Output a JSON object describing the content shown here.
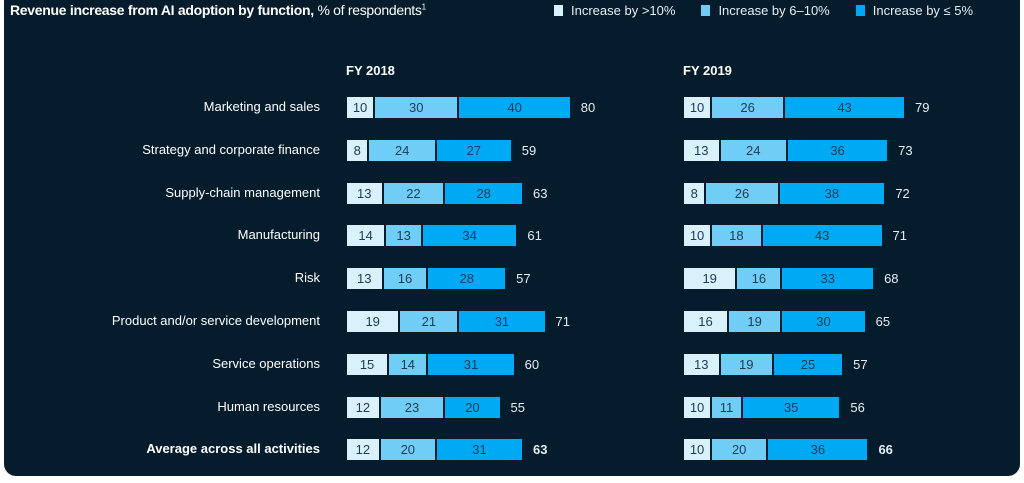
{
  "chart_data": {
    "type": "bar",
    "stacked": true,
    "orientation": "horizontal",
    "title": "Revenue increase from AI adoption by function,",
    "title_suffix": "% of respondents",
    "footnote_marker": "1",
    "legend": [
      "Increase by >10%",
      "Increase by 6–10%",
      "Increase by ≤ 5%"
    ],
    "legend_placement": "top-right",
    "colors": [
      "#d8f1fb",
      "#6fcdf6",
      "#00a9f4"
    ],
    "categories": [
      "Marketing and sales",
      "Strategy and corporate finance",
      "Supply-chain management",
      "Manufacturing",
      "Risk",
      "Product and/or service development",
      "Service operations",
      "Human resources",
      "Average across all activities"
    ],
    "panels": [
      {
        "title": "FY 2018",
        "series": [
          {
            "name": "Increase by >10%",
            "values": [
              10,
              8,
              13,
              14,
              13,
              19,
              15,
              12,
              12
            ]
          },
          {
            "name": "Increase by 6–10%",
            "values": [
              30,
              24,
              22,
              13,
              16,
              21,
              14,
              23,
              20
            ]
          },
          {
            "name": "Increase by ≤ 5%",
            "values": [
              40,
              27,
              28,
              34,
              28,
              31,
              31,
              20,
              31
            ]
          }
        ],
        "totals": [
          80,
          59,
          63,
          61,
          57,
          71,
          60,
          55,
          63
        ]
      },
      {
        "title": "FY 2019",
        "series": [
          {
            "name": "Increase by >10%",
            "values": [
              10,
              13,
              8,
              10,
              19,
              16,
              13,
              10,
              10
            ]
          },
          {
            "name": "Increase by 6–10%",
            "values": [
              26,
              24,
              26,
              18,
              16,
              19,
              19,
              11,
              20
            ]
          },
          {
            "name": "Increase by ≤ 5%",
            "values": [
              43,
              36,
              38,
              43,
              33,
              30,
              25,
              35,
              36
            ]
          }
        ],
        "totals": [
          79,
          73,
          72,
          71,
          68,
          65,
          57,
          56,
          66
        ]
      }
    ]
  }
}
